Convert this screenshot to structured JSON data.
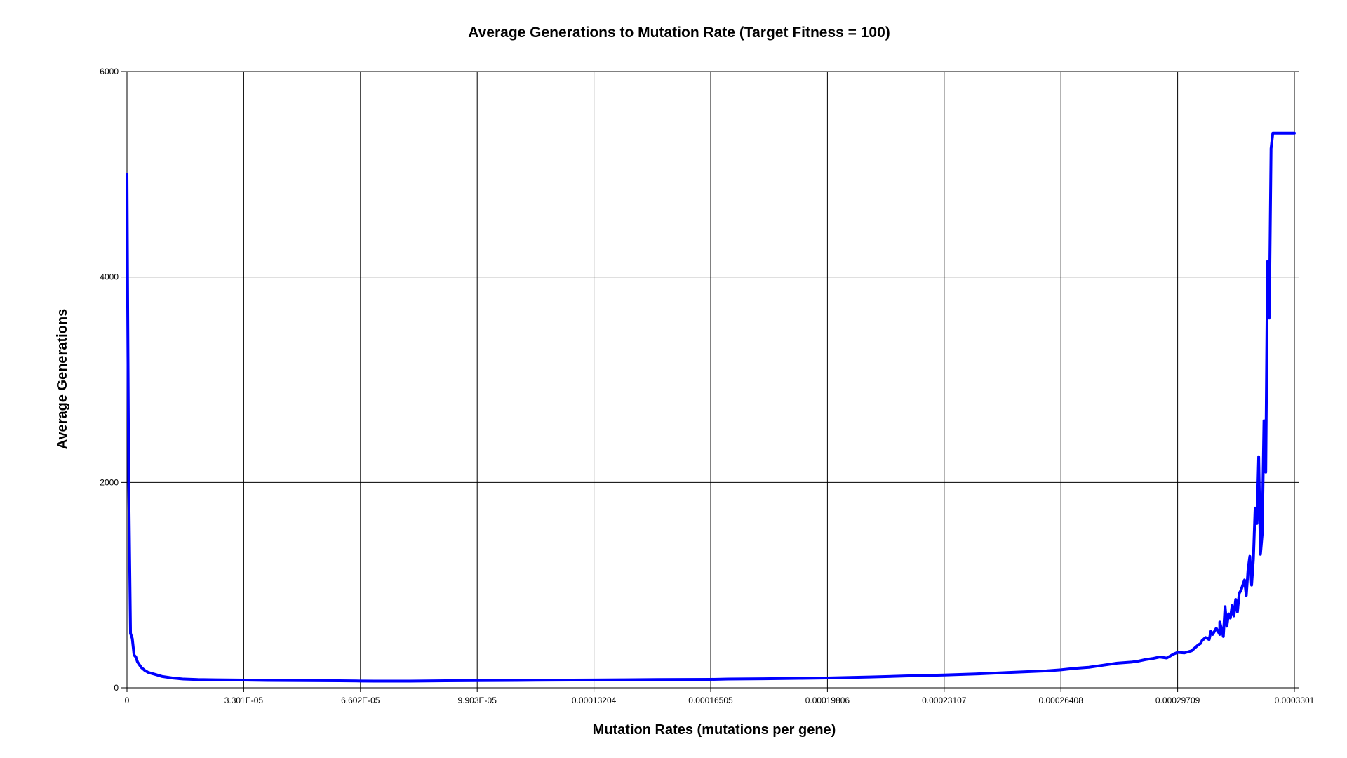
{
  "chart_data": {
    "type": "line",
    "title": "Average Generations to Mutation Rate (Target Fitness = 100)",
    "xlabel": "Mutation Rates (mutations per gene)",
    "ylabel": "Average Generations",
    "xlim": [
      0,
      0.0003301
    ],
    "ylim": [
      0,
      6000
    ],
    "grid": true,
    "legend": "none",
    "x_ticks": [
      {
        "value": 0,
        "label": "0"
      },
      {
        "value": 3.301e-05,
        "label": "3.301E-05"
      },
      {
        "value": 6.602e-05,
        "label": "6.602E-05"
      },
      {
        "value": 9.903e-05,
        "label": "9.903E-05"
      },
      {
        "value": 0.00013204,
        "label": "0.00013204"
      },
      {
        "value": 0.00016505,
        "label": "0.00016505"
      },
      {
        "value": 0.00019806,
        "label": "0.00019806"
      },
      {
        "value": 0.00023107,
        "label": "0.00023107"
      },
      {
        "value": 0.00026408,
        "label": "0.00026408"
      },
      {
        "value": 0.00029709,
        "label": "0.00029709"
      },
      {
        "value": 0.0003301,
        "label": "0.0003301"
      }
    ],
    "y_ticks": [
      {
        "value": 0,
        "label": "0"
      },
      {
        "value": 2000,
        "label": "2000"
      },
      {
        "value": 4000,
        "label": "4000"
      },
      {
        "value": 6000,
        "label": "6000"
      }
    ],
    "series": [
      {
        "color": "#0000ff",
        "x": [
          0,
          2e-07,
          5e-07,
          1e-06,
          1.5e-06,
          2e-06,
          2.5e-06,
          3e-06,
          4e-06,
          5e-06,
          6e-06,
          8e-06,
          1e-05,
          1.3e-05,
          1.6e-05,
          2e-05,
          2.5e-05,
          3.301e-05,
          4e-05,
          5e-05,
          6e-05,
          6.602e-05,
          7e-05,
          8e-05,
          9e-05,
          9.903e-05,
          0.00011,
          0.00012,
          0.00013204,
          0.00014,
          0.00015,
          0.00016505,
          0.00017,
          0.00018,
          0.00019,
          0.00019806,
          0.00021,
          0.00022,
          0.00023107,
          0.00024,
          0.00025,
          0.00026,
          0.00026408,
          0.000268,
          0.000272,
          0.000276,
          0.00028,
          0.000284,
          0.000286,
          0.000288,
          0.00029,
          0.000292,
          0.000294,
          0.000296,
          0.00029709,
          0.000299,
          0.000301,
          0.000302,
          0.000303,
          0.0003035,
          0.000304,
          0.000305,
          0.000306,
          0.0003065,
          0.000307,
          0.000308,
          0.000309,
          0.000309,
          0.00031,
          0.0003105,
          0.000311,
          0.0003115,
          0.000312,
          0.0003125,
          0.000313,
          0.0003135,
          0.000314,
          0.0003145,
          0.000315,
          0.0003155,
          0.000316,
          0.0003165,
          0.000317,
          0.0003175,
          0.000318,
          0.0003185,
          0.000319,
          0.0003195,
          0.00032,
          0.0003205,
          0.000321,
          0.0003215,
          0.000322,
          0.0003225,
          0.000323,
          0.0003235,
          0.000324,
          0.0003245,
          0.000325,
          0.0003255,
          0.000326,
          0.0003265,
          0.000327,
          0.00032725,
          0.0003275,
          0.000328,
          0.0003285,
          0.000329,
          0.0003295,
          0.0003301
        ],
        "y": [
          5000,
          3700,
          2000,
          530,
          480,
          320,
          300,
          250,
          200,
          170,
          150,
          130,
          110,
          95,
          85,
          80,
          78,
          75,
          72,
          70,
          68,
          66,
          65,
          65,
          68,
          70,
          72,
          74,
          76,
          78,
          80,
          82,
          85,
          88,
          92,
          96,
          105,
          115,
          125,
          135,
          150,
          165,
          175,
          190,
          200,
          220,
          240,
          250,
          260,
          275,
          285,
          300,
          290,
          330,
          345,
          340,
          360,
          390,
          420,
          430,
          460,
          490,
          470,
          550,
          520,
          580,
          520,
          640,
          500,
          790,
          600,
          720,
          680,
          800,
          700,
          860,
          740,
          920,
          950,
          1000,
          1050,
          900,
          1150,
          1280,
          1000,
          1250,
          1750,
          1600,
          2250,
          1300,
          1500,
          2600,
          2100,
          4150,
          3600,
          5250,
          5400,
          5400,
          5400,
          5400,
          5400,
          5400,
          5400,
          5400,
          5400,
          5400,
          5400,
          5400,
          5400,
          5400
        ]
      }
    ]
  }
}
